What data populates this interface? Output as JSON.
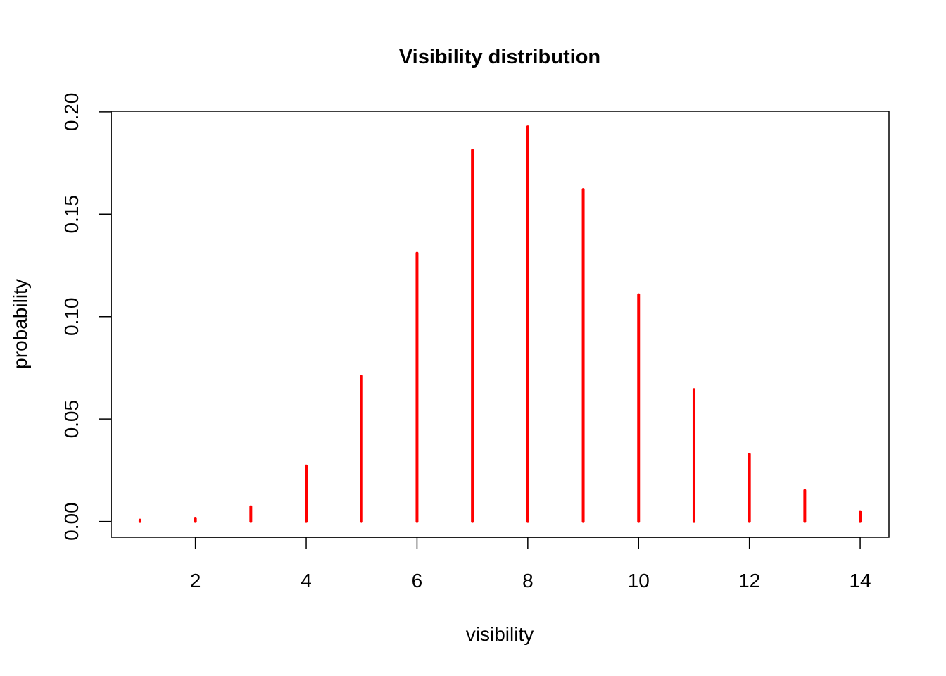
{
  "chart_data": {
    "type": "bar",
    "style": "vertical-lines",
    "title": "Visibility distribution",
    "xlabel": "visibility",
    "ylabel": "probability",
    "x": [
      1,
      2,
      3,
      4,
      5,
      6,
      7,
      8,
      9,
      10,
      11,
      12,
      13,
      14
    ],
    "values": [
      0.0004,
      0.0016,
      0.0072,
      0.0271,
      0.071,
      0.131,
      0.1813,
      0.1927,
      0.1621,
      0.1107,
      0.0644,
      0.0328,
      0.0151,
      0.0048
    ],
    "xlim": [
      0.48,
      14.52
    ],
    "ylim": [
      -0.0077,
      0.2003
    ],
    "x_ticks": [
      "2",
      "4",
      "6",
      "8",
      "10",
      "12",
      "14"
    ],
    "y_ticks": [
      "0.00",
      "0.05",
      "0.10",
      "0.15",
      "0.20"
    ],
    "grid": false,
    "legend": "none",
    "line_color": "#ff0000"
  }
}
